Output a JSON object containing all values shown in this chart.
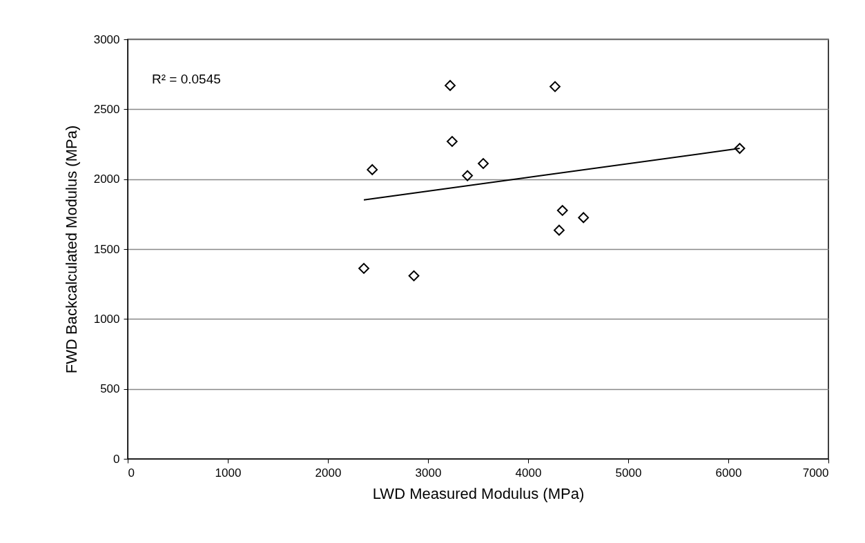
{
  "chart_data": {
    "type": "scatter",
    "xlabel": "LWD Measured Modulus (MPa)",
    "ylabel": "FWD Backcalculated Modulus (MPa)",
    "xlim": [
      0,
      7000
    ],
    "xticks": [
      0,
      1000,
      2000,
      3000,
      4000,
      5000,
      6000,
      7000
    ],
    "ylim": [
      0,
      3000
    ],
    "yticks": [
      0,
      500,
      1000,
      1500,
      2000,
      2500,
      3000
    ],
    "grid": "y",
    "marker": "diamond",
    "annotations": [
      "R² = 0.0545"
    ],
    "series": [
      {
        "color": "#000000",
        "x": [
          2359,
          2443,
          2859,
          3221,
          3241,
          3394,
          3552,
          4269,
          4343,
          4310,
          4553,
          6114
        ],
        "values": [
          1362,
          2068,
          1309,
          2670,
          2270,
          2025,
          2112,
          2662,
          1776,
          1635,
          1725,
          2220
        ]
      },
      {
        "type": "line",
        "color": "#000000",
        "line_style": "solid",
        "marker": "none",
        "x": [
          2359,
          6114
        ],
        "values": [
          1852,
          2220
        ]
      }
    ]
  }
}
